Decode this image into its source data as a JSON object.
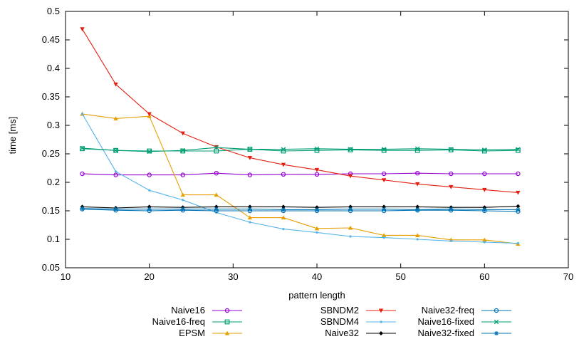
{
  "chart_data": {
    "type": "line",
    "title": "",
    "xlabel": "pattern length",
    "ylabel": "time [ms]",
    "xlim": [
      10,
      70
    ],
    "ylim": [
      0.05,
      0.5
    ],
    "x_ticks": [
      "10",
      "20",
      "30",
      "40",
      "50",
      "60",
      "70"
    ],
    "y_ticks": [
      "0.05",
      "0.1",
      "0.15",
      "0.2",
      "0.25",
      "0.3",
      "0.35",
      "0.4",
      "0.45",
      "0.5"
    ],
    "grid": false,
    "legend_position": "bottom",
    "x": [
      12,
      16,
      20,
      24,
      28,
      32,
      36,
      40,
      44,
      48,
      52,
      56,
      60,
      64
    ],
    "series": [
      {
        "name": "Naive16",
        "color": "#9400d3",
        "marker": "circle",
        "values": [
          0.215,
          0.213,
          0.213,
          0.213,
          0.216,
          0.213,
          0.214,
          0.214,
          0.215,
          0.215,
          0.216,
          0.215,
          0.215,
          0.215
        ]
      },
      {
        "name": "Naive16-freq",
        "color": "#009e73",
        "marker": "square",
        "values": [
          0.259,
          0.256,
          0.255,
          0.255,
          0.255,
          0.258,
          0.255,
          0.256,
          0.257,
          0.256,
          0.256,
          0.257,
          0.255,
          0.256
        ]
      },
      {
        "name": "EPSM",
        "color": "#e69f00",
        "marker": "triangle-up",
        "values": [
          0.32,
          0.312,
          0.316,
          0.178,
          0.178,
          0.138,
          0.138,
          0.119,
          0.12,
          0.107,
          0.107,
          0.099,
          0.099,
          0.092
        ]
      },
      {
        "name": "SBNDM2",
        "color": "#e51e10",
        "marker": "triangle-down",
        "values": [
          0.469,
          0.372,
          0.32,
          0.286,
          0.262,
          0.243,
          0.231,
          0.222,
          0.211,
          0.204,
          0.197,
          0.192,
          0.187,
          0.182
        ]
      },
      {
        "name": "SBNDM4",
        "color": "#56b4e9",
        "marker": "dot",
        "values": [
          0.32,
          0.219,
          0.186,
          0.169,
          0.147,
          0.13,
          0.118,
          0.112,
          0.105,
          0.103,
          0.1,
          0.097,
          0.095,
          0.093
        ]
      },
      {
        "name": "Naive32",
        "color": "#000000",
        "marker": "diamond",
        "values": [
          0.157,
          0.155,
          0.157,
          0.156,
          0.157,
          0.157,
          0.157,
          0.156,
          0.157,
          0.157,
          0.157,
          0.156,
          0.156,
          0.158
        ]
      },
      {
        "name": "Naive32-freq",
        "color": "#0072b2",
        "marker": "circle",
        "values": [
          0.153,
          0.151,
          0.15,
          0.151,
          0.15,
          0.15,
          0.15,
          0.15,
          0.15,
          0.15,
          0.151,
          0.151,
          0.15,
          0.149
        ]
      },
      {
        "name": "Naive16-fixed",
        "color": "#009e73",
        "marker": "x",
        "values": [
          0.26,
          0.256,
          0.254,
          0.256,
          0.261,
          0.258,
          0.258,
          0.259,
          0.258,
          0.258,
          0.259,
          0.258,
          0.257,
          0.258
        ]
      },
      {
        "name": "Naive32-fixed",
        "color": "#0072b2",
        "marker": "star",
        "values": [
          0.154,
          0.153,
          0.153,
          0.153,
          0.153,
          0.153,
          0.152,
          0.152,
          0.153,
          0.153,
          0.152,
          0.153,
          0.152,
          0.152
        ]
      }
    ]
  }
}
